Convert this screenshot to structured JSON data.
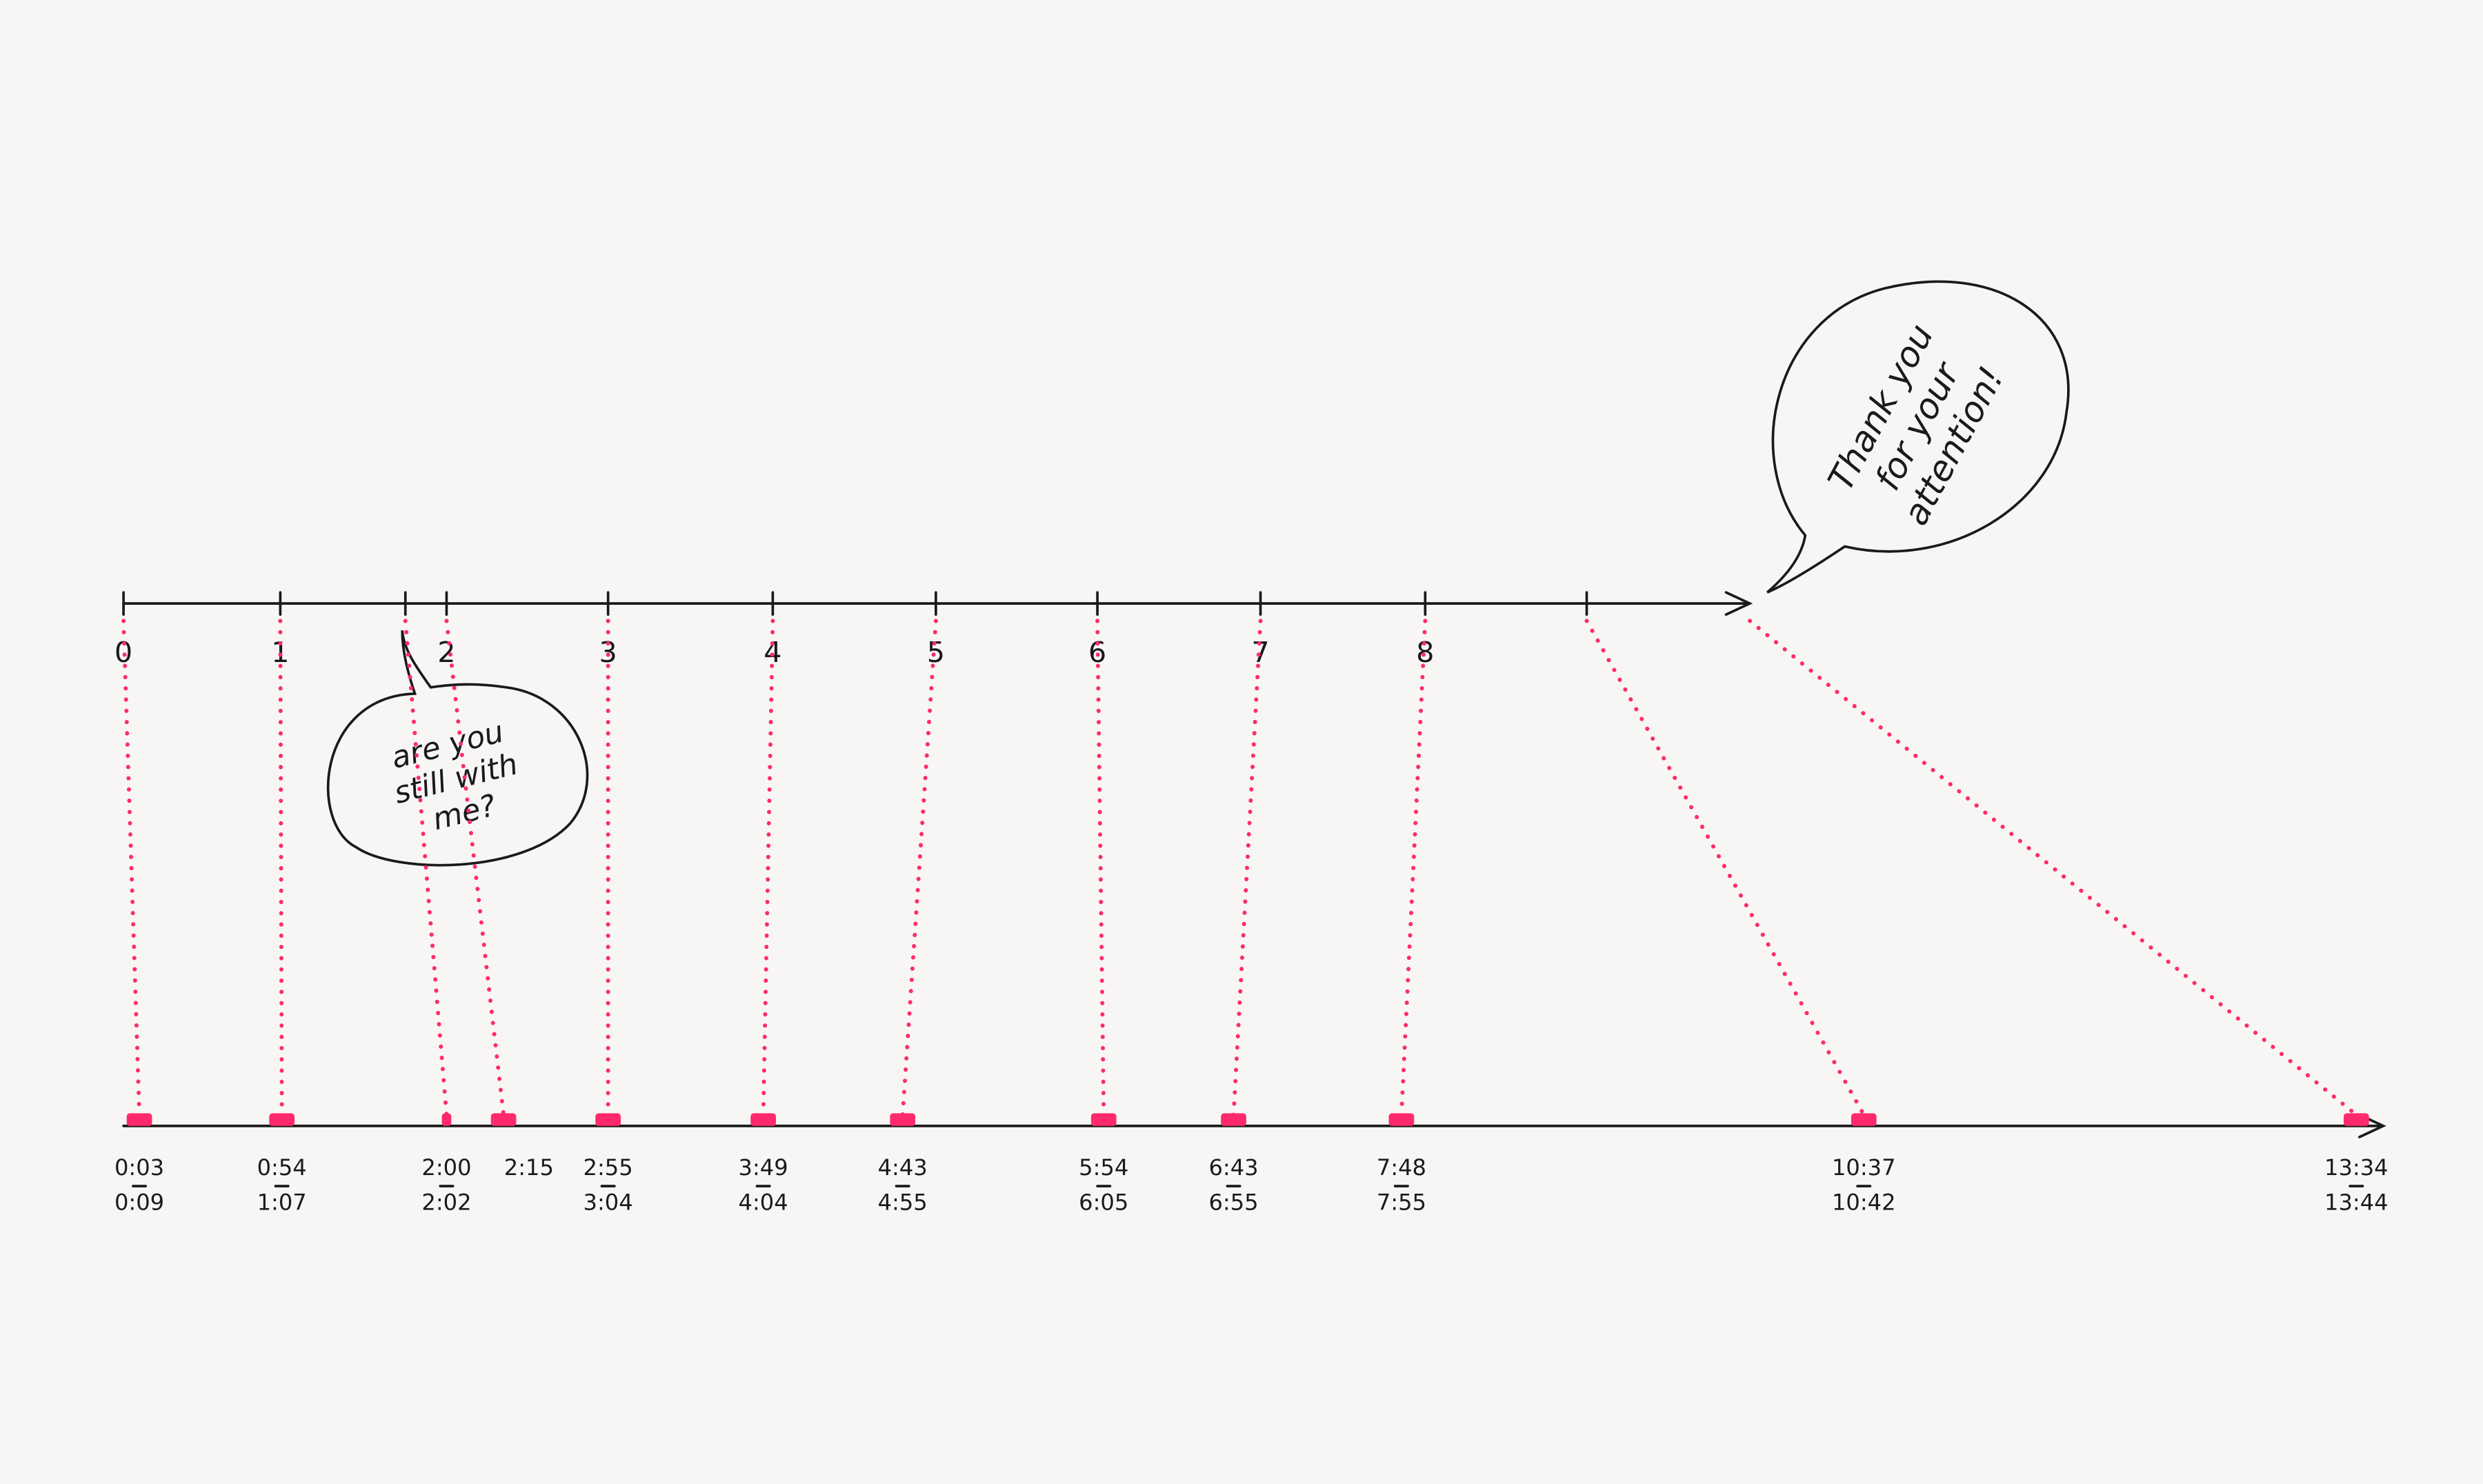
{
  "top_axis": {
    "labels": [
      "0",
      "1",
      "2",
      "3",
      "4",
      "5",
      "6",
      "7",
      "8"
    ]
  },
  "bubbles": [
    {
      "lines": [
        "are you",
        "still with",
        "me?"
      ]
    },
    {
      "lines": [
        "Thank you",
        "for your",
        "attention!"
      ]
    }
  ],
  "bottom_axis": {
    "labels": [
      [
        "0:03",
        "0:09"
      ],
      [
        "0:54",
        "1:07"
      ],
      [
        "2:00",
        "2:02"
      ],
      [
        "2:15"
      ],
      [
        "2:55",
        "3:04"
      ],
      [
        "3:49",
        "4:04"
      ],
      [
        "4:43",
        "4:55"
      ],
      [
        "5:54",
        "6:05"
      ],
      [
        "6:43",
        "6:55"
      ],
      [
        "7:48",
        "7:55"
      ],
      [
        "10:37",
        "10:42"
      ],
      [
        "13:34",
        "13:44"
      ]
    ]
  }
}
